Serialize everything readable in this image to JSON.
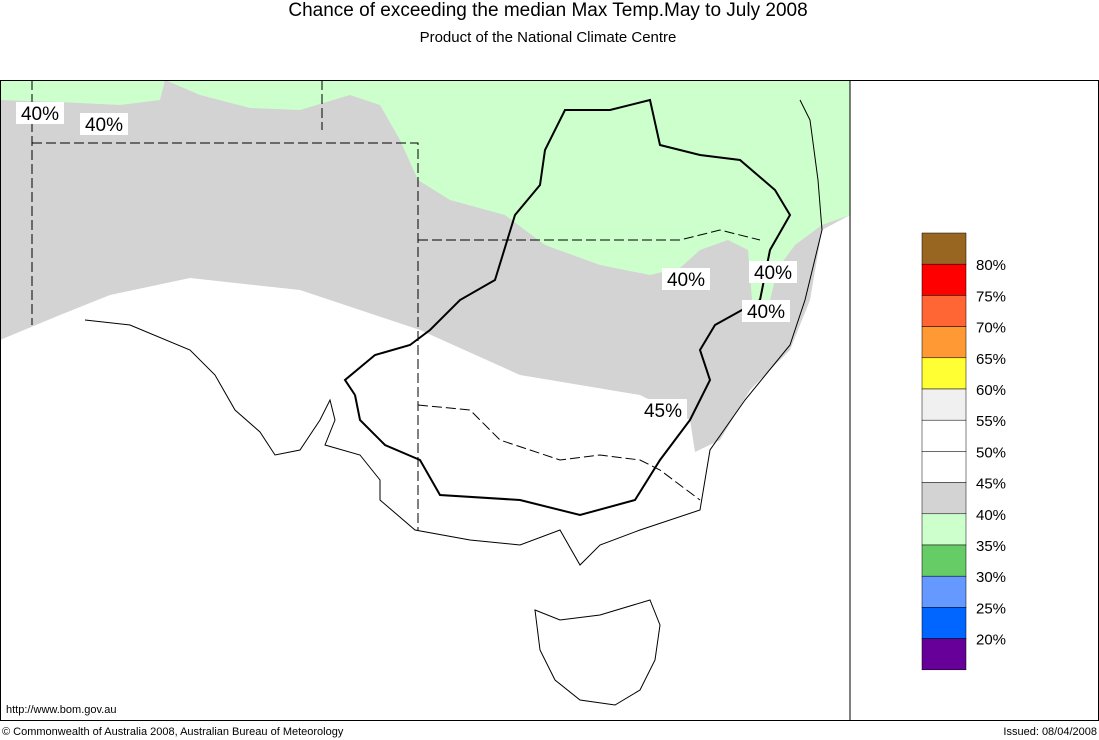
{
  "header": {
    "title": "Chance of exceeding the median Max Temp.May to July 2008",
    "subtitle": "Product of the National Climate Centre"
  },
  "map": {
    "labels": [
      "40%",
      "40%",
      "40%",
      "40%",
      "40%",
      "45%"
    ]
  },
  "legend": {
    "colors": [
      "#996622",
      "#ff0000",
      "#ff6633",
      "#ff9933",
      "#ffff33",
      "#f0f0f0",
      "#ffffff",
      "#ffffff",
      "#d3d3d3",
      "#ccffcc",
      "#66cc66",
      "#6699ff",
      "#0066ff",
      "#660099"
    ],
    "labels": [
      "80%",
      "75%",
      "70%",
      "65%",
      "60%",
      "55%",
      "50%",
      "45%",
      "40%",
      "35%",
      "30%",
      "25%",
      "20%"
    ]
  },
  "footer": {
    "url": "http://www.bom.gov.au",
    "copyright": "© Commonwealth of Australia 2008, Australian Bureau of Meteorology",
    "issued": "Issued: 08/04/2008"
  }
}
